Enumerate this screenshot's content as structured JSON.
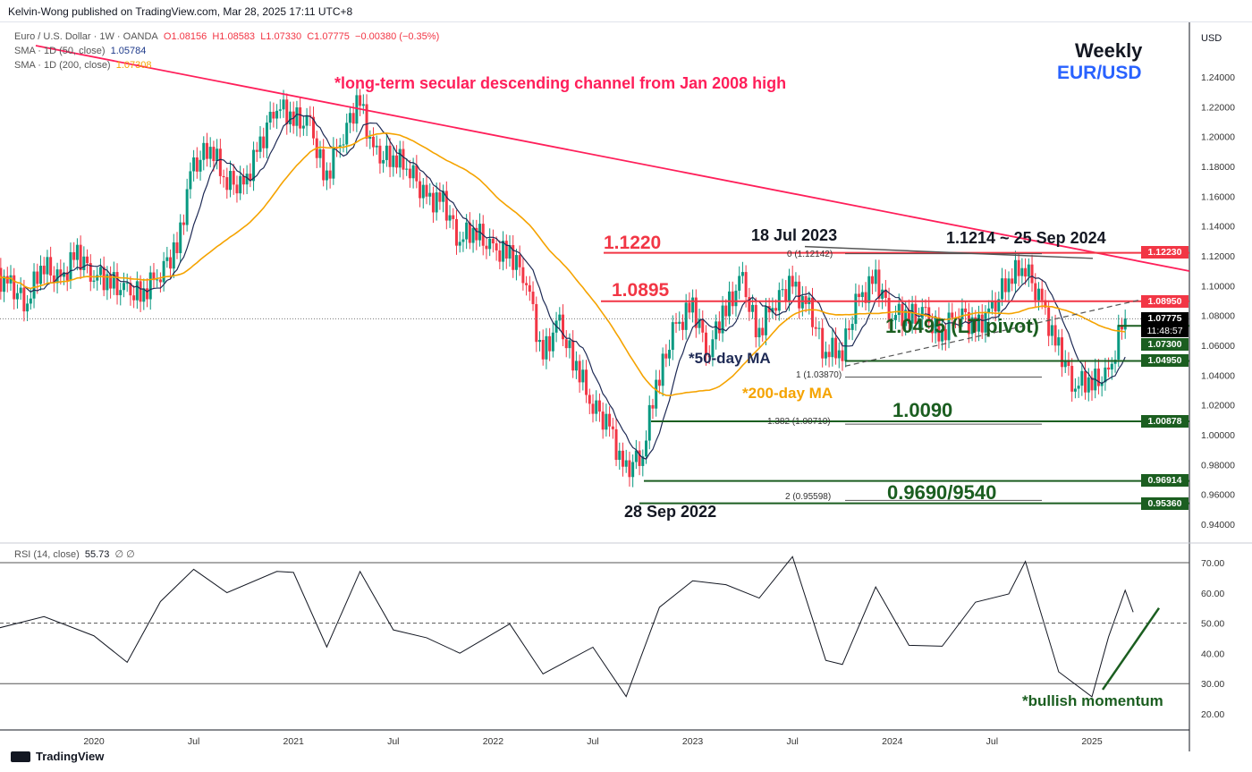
{
  "publisher": "Kelvin-Wong published on TradingView.com, Mar 28, 2025 17:11 UTC+8",
  "legend": {
    "symbol": "Euro / U.S. Dollar · 1W · OANDA",
    "open": "O1.08156",
    "high": "H1.08583",
    "low": "L1.07330",
    "close": "C1.07775",
    "change": "−0.00380 (−0.35%)",
    "sma50_label": "SMA · 1D (50, close)",
    "sma50_value": "1.05784",
    "sma200_label": "SMA · 1D (200, close)",
    "sma200_value": "1.07308",
    "rsi_label": "RSI (14, close)",
    "rsi_value": "55.73",
    "rsi_extra": "∅ ∅"
  },
  "title": {
    "timeframe": "Weekly",
    "pair": "EUR/USD"
  },
  "currency": "USD",
  "annotations": {
    "channel": "*long-term secular descending channel from Jan 2008 high",
    "jul2023": "18 Jul 2023",
    "sep2024": "1.1214 ~ 25 Sep 2024",
    "lvl_11220": "1.1220",
    "lvl_10895": "1.0895",
    "lvl_10495": "1.0495 (LT pivot)",
    "lvl_10090": "1.0090",
    "lvl_09690": "0.9690/9540",
    "sep2022": "28 Sep 2022",
    "ma50": "*50-day MA",
    "ma200": "*200-day MA",
    "bullish": "*bullish momentum",
    "fib0": "0 (1.12142)",
    "fib1": "1 (1.03870)",
    "fib1382": "1.382 (1.00710)",
    "fib2": "2 (0.95598)"
  },
  "price_tags": [
    {
      "price": 1.1223,
      "label": "1.12230",
      "color": "#f23645"
    },
    {
      "price": 1.0895,
      "label": "1.08950",
      "color": "#f23645"
    },
    {
      "price": 1.07775,
      "label": "1.07775",
      "sub": "11:48:57",
      "color": "#000000"
    },
    {
      "price": 1.073,
      "label": "1.07300",
      "color": "#1b5e20"
    },
    {
      "price": 1.0495,
      "label": "1.04950",
      "color": "#1b5e20"
    },
    {
      "price": 1.00878,
      "label": "1.00878",
      "color": "#1b5e20"
    },
    {
      "price": 0.96914,
      "label": "0.96914",
      "color": "#1b5e20"
    },
    {
      "price": 0.9536,
      "label": "0.95360",
      "color": "#1b5e20"
    }
  ],
  "colors": {
    "up": "#089981",
    "down": "#f23645",
    "sma50": "#1e2a55",
    "sma200": "#f5a300",
    "channel": "#ff1f5a",
    "level_red": "#f23645",
    "level_green": "#1b5e20"
  },
  "chart_data": [
    {
      "type": "candlestick",
      "title": "Euro / U.S. Dollar · 1W · OANDA",
      "ylabel": "USD",
      "ylim": [
        0.93,
        1.25
      ],
      "y_ticks": [
        "1.24000",
        "1.22000",
        "1.20000",
        "1.18000",
        "1.16000",
        "1.14000",
        "1.12000",
        "1.10000",
        "1.08000",
        "1.06000",
        "1.04000",
        "1.02000",
        "1.00000",
        "0.98000",
        "0.96000",
        "0.94000"
      ],
      "x_ticks": [
        "2020",
        "Jul",
        "2021",
        "Jul",
        "2022",
        "Jul",
        "2023",
        "Jul",
        "2024",
        "Jul",
        "2025"
      ],
      "monthly_closes": {
        "start": "2019-07",
        "values": [
          1.108,
          1.099,
          1.09,
          1.115,
          1.102,
          1.121,
          1.109,
          1.103,
          1.095,
          1.095,
          1.11,
          1.123,
          1.178,
          1.194,
          1.172,
          1.165,
          1.193,
          1.222,
          1.213,
          1.207,
          1.173,
          1.202,
          1.223,
          1.186,
          1.187,
          1.18,
          1.158,
          1.156,
          1.133,
          1.137,
          1.123,
          1.122,
          1.107,
          1.054,
          1.073,
          1.048,
          1.022,
          1.005,
          0.975,
          0.988,
          1.04,
          1.07,
          1.086,
          1.058,
          1.084,
          1.102,
          1.069,
          1.091,
          1.1,
          1.084,
          1.057,
          1.057,
          1.089,
          1.104,
          1.082,
          1.08,
          1.079,
          1.067,
          1.085,
          1.071,
          1.082,
          1.105,
          1.114,
          1.088,
          1.058,
          1.035,
          1.036,
          1.038,
          1.078
        ]
      },
      "levels": [
        1.122,
        1.0895,
        1.073,
        1.0495,
        1.009,
        0.969,
        0.954
      ]
    },
    {
      "type": "line",
      "title": "RSI (14, close)",
      "ylim": [
        17,
        75
      ],
      "y_ticks": [
        "70.00",
        "60.00",
        "50.00",
        "40.00",
        "30.00",
        "20.00"
      ],
      "bands": [
        70,
        50,
        30
      ],
      "x": [
        "2019-07",
        "2019-10",
        "2020-01",
        "2020-03",
        "2020-05",
        "2020-07",
        "2020-09",
        "2020-12",
        "2021-01",
        "2021-03",
        "2021-05",
        "2021-07",
        "2021-09",
        "2021-11",
        "2022-02",
        "2022-04",
        "2022-07",
        "2022-09",
        "2022-11",
        "2023-01",
        "2023-03",
        "2023-05",
        "2023-07",
        "2023-09",
        "2023-10",
        "2023-12",
        "2024-02",
        "2024-04",
        "2024-06",
        "2024-08",
        "2024-09",
        "2024-11",
        "2025-01",
        "2025-02",
        "2025-03",
        "2025-03b"
      ],
      "values": [
        48,
        50,
        48,
        37,
        55,
        70,
        60,
        65,
        69,
        42,
        65,
        50,
        45,
        38,
        52,
        33,
        40,
        28,
        55,
        62,
        65,
        58,
        70,
        40,
        36,
        60,
        45,
        42,
        55,
        62,
        70,
        32,
        28,
        45,
        59,
        56
      ]
    }
  ]
}
